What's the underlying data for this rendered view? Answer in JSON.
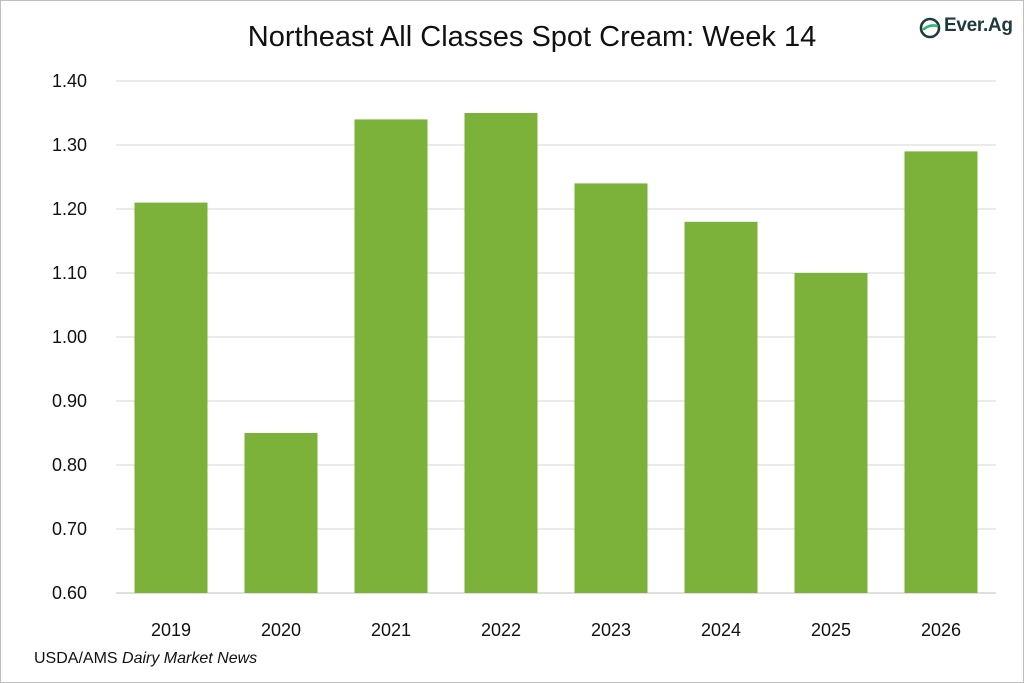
{
  "colors": {
    "bar": "#7cb23a",
    "grid": "#d4d4d4",
    "logo_dark": "#1f3a3d",
    "logo_green": "#2bb673"
  },
  "logo": {
    "text": "Ever.Ag",
    "icon": "ever-ag-logo-icon"
  },
  "source": {
    "prefix": "USDA/AMS ",
    "italic": "Dairy Market News"
  },
  "chart_data": {
    "type": "bar",
    "title": "Northeast All Classes Spot Cream: Week 14",
    "categories": [
      "2019",
      "2020",
      "2021",
      "2022",
      "2023",
      "2024",
      "2025",
      "2026"
    ],
    "values": [
      1.21,
      0.85,
      1.34,
      1.35,
      1.24,
      1.18,
      1.1,
      1.29
    ],
    "ylim": [
      0.6,
      1.4
    ],
    "yticks": [
      "0.60",
      "0.70",
      "0.80",
      "0.90",
      "1.00",
      "1.10",
      "1.20",
      "1.30",
      "1.40"
    ],
    "xlabel": "",
    "ylabel": "",
    "grid": true,
    "legend": "none"
  }
}
